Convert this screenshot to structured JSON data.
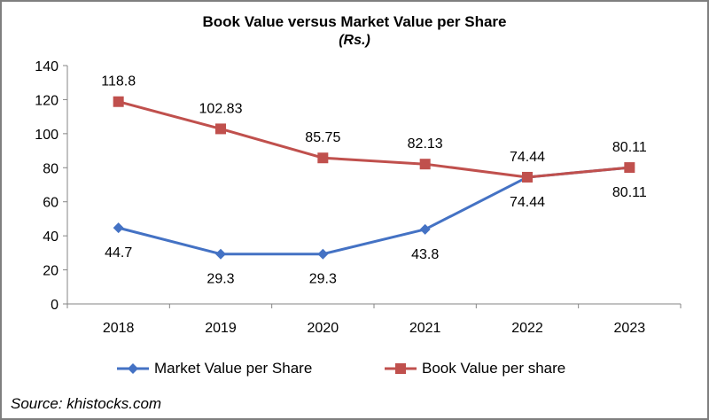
{
  "chart_data": {
    "type": "line",
    "title": "Book Value versus Market Value per Share",
    "subtitle": "(Rs.)",
    "categories": [
      "2018",
      "2019",
      "2020",
      "2021",
      "2022",
      "2023"
    ],
    "ylim": [
      0,
      140
    ],
    "yticks": [
      0,
      20,
      40,
      60,
      80,
      100,
      120,
      140
    ],
    "grid": false,
    "series": [
      {
        "name": "Market Value per Share",
        "color": "#4472c4",
        "marker": "diamond",
        "values": [
          44.7,
          29.3,
          29.3,
          43.8,
          74.44,
          80.11
        ],
        "labels": [
          "44.7",
          "29.3",
          "29.3",
          "43.8",
          "74.44",
          "80.11"
        ],
        "label_position": "below"
      },
      {
        "name": "Book Value per share",
        "color": "#c0504d",
        "marker": "square",
        "values": [
          118.8,
          102.83,
          85.75,
          82.13,
          74.44,
          80.11
        ],
        "labels": [
          "118.8",
          "102.83",
          "85.75",
          "82.13",
          "74.44",
          "80.11"
        ],
        "label_position": "above"
      }
    ],
    "legend": "bottom",
    "source": "Source: khistocks.com"
  }
}
